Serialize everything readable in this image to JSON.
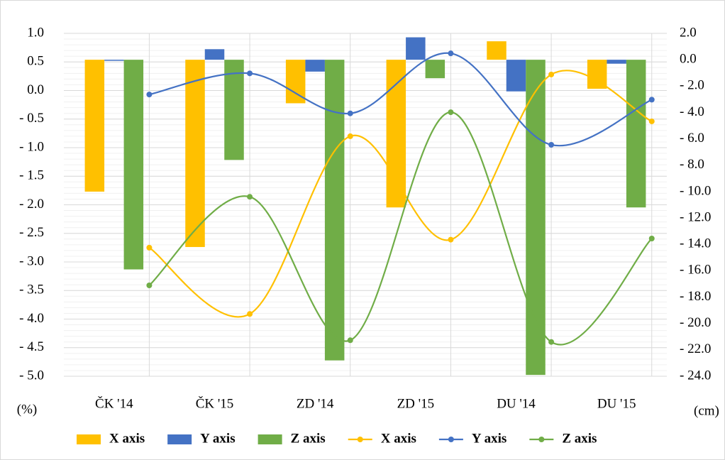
{
  "chart_data": {
    "type": "combo",
    "categories": [
      "ČK '14",
      "ČK '15",
      "ZD '14",
      "ZD '15",
      "DU '14",
      "DU '15"
    ],
    "ylabel": "(%)",
    "y2label": "(cm)",
    "ylim": [
      -5.0,
      1.0
    ],
    "yticks": [
      {
        "value": 1.0,
        "label": "1.0"
      },
      {
        "value": 0.5,
        "label": "0.5"
      },
      {
        "value": 0.0,
        "label": "0.0"
      },
      {
        "value": -0.5,
        "label": "- 0.5"
      },
      {
        "value": -1.0,
        "label": "- 1.0"
      },
      {
        "value": -1.5,
        "label": "- 1.5"
      },
      {
        "value": -2.0,
        "label": "- 2.0"
      },
      {
        "value": -2.5,
        "label": "- 2.5"
      },
      {
        "value": -3.0,
        "label": "- 3.0"
      },
      {
        "value": -3.5,
        "label": "- 3.5"
      },
      {
        "value": -4.0,
        "label": "- 4.0"
      },
      {
        "value": -4.5,
        "label": "- 4.5"
      },
      {
        "value": -5.0,
        "label": "- 5.0"
      }
    ],
    "y2lim": [
      -24.0,
      2.0
    ],
    "y2ticks": [
      {
        "value": 2.0,
        "label": "2.0"
      },
      {
        "value": 0.0,
        "label": "0.0"
      },
      {
        "value": -2.0,
        "label": "- 2.0"
      },
      {
        "value": -4.0,
        "label": "- 4.0"
      },
      {
        "value": -6.0,
        "label": "- 6.0"
      },
      {
        "value": -8.0,
        "label": "- 8.0"
      },
      {
        "value": -10.0,
        "label": "- 10.0"
      },
      {
        "value": -12.0,
        "label": "- 12.0"
      },
      {
        "value": -14.0,
        "label": "- 14.0"
      },
      {
        "value": -16.0,
        "label": "- 16.0"
      },
      {
        "value": -18.0,
        "label": "- 18.0"
      },
      {
        "value": -20.0,
        "label": "- 20.0"
      },
      {
        "value": -22.0,
        "label": "- 22.0"
      },
      {
        "value": -24.0,
        "label": "- 24.0"
      }
    ],
    "grid": true,
    "series": [
      {
        "name": "X axis",
        "type": "bar",
        "axis": "y2",
        "color": "#ffc000",
        "values": [
          -10.0,
          -14.2,
          -3.3,
          -11.2,
          1.4,
          -2.2
        ]
      },
      {
        "name": "Y axis",
        "type": "bar",
        "axis": "y2",
        "color": "#4472c4",
        "values": [
          0.0,
          0.8,
          -0.9,
          1.7,
          -2.4,
          -0.3
        ]
      },
      {
        "name": "Z axis",
        "type": "bar",
        "axis": "y2",
        "color": "#70ad47",
        "values": [
          -15.9,
          -7.6,
          -22.8,
          -1.4,
          -23.9,
          -11.2
        ]
      },
      {
        "name": "X axis",
        "type": "line",
        "color": "#ffc000",
        "values": [
          -2.75,
          -3.91,
          -0.8,
          -2.61,
          0.28,
          -0.54
        ]
      },
      {
        "name": "Y axis",
        "type": "line",
        "color": "#4472c4",
        "values": [
          -0.07,
          0.3,
          -0.4,
          0.65,
          -0.95,
          -0.16
        ]
      },
      {
        "name": "Z axis",
        "type": "line",
        "color": "#70ad47",
        "values": [
          -3.41,
          -1.86,
          -4.37,
          -0.38,
          -4.4,
          -2.59
        ]
      }
    ]
  }
}
